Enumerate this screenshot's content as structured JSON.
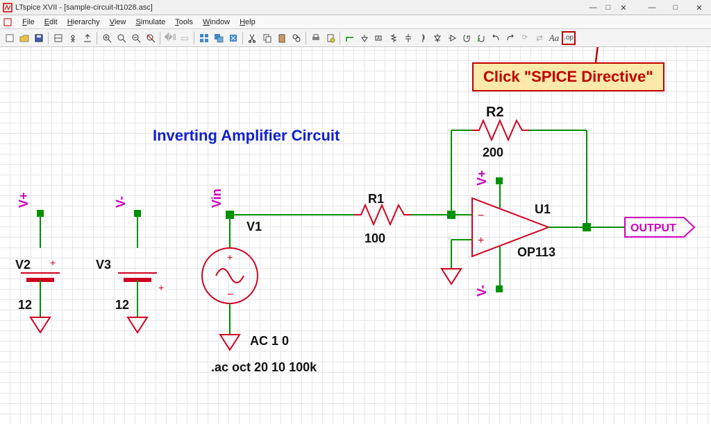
{
  "window": {
    "title": "LTspice XVII - [sample-circuit-lt1028.asc]",
    "minimize_icon": "—",
    "maximize_icon": "□",
    "close_icon": "✕"
  },
  "menubar": {
    "items": [
      "File",
      "Edit",
      "Hierarchy",
      "View",
      "Simulate",
      "Tools",
      "Window",
      "Help"
    ]
  },
  "toolbar": {
    "spice_directive_label": ".op"
  },
  "callout": {
    "text": "Click \"SPICE Directive\"",
    "bg": "#fde9a9",
    "border": "#c00000",
    "color": "#c00000",
    "arrow_color": "#c00000"
  },
  "schematic": {
    "title": "Inverting Amplifier Circuit",
    "title_color": "#1020d0",
    "wire_color": "#009000",
    "component_color": "#d00020",
    "net_label_color": "#d000c0",
    "text_color": "#111",
    "output_label": "OUTPUT",
    "sources": {
      "v1": {
        "name": "V1",
        "net": "Vin",
        "ac": "AC 1 0"
      },
      "v2": {
        "name": "V2",
        "value": "12",
        "net": "V+"
      },
      "v3": {
        "name": "V3",
        "value": "12",
        "net": "V-"
      }
    },
    "resistors": {
      "r1": {
        "name": "R1",
        "value": "100"
      },
      "r2": {
        "name": "R2",
        "value": "200"
      }
    },
    "opamp": {
      "name": "U1",
      "model": "OP113",
      "vpos": "V+",
      "vneg": "V-"
    },
    "directive": ".ac oct 20 10 100k",
    "fontsizes": {
      "title": 22,
      "label": 18,
      "value": 18,
      "net": 18
    }
  }
}
